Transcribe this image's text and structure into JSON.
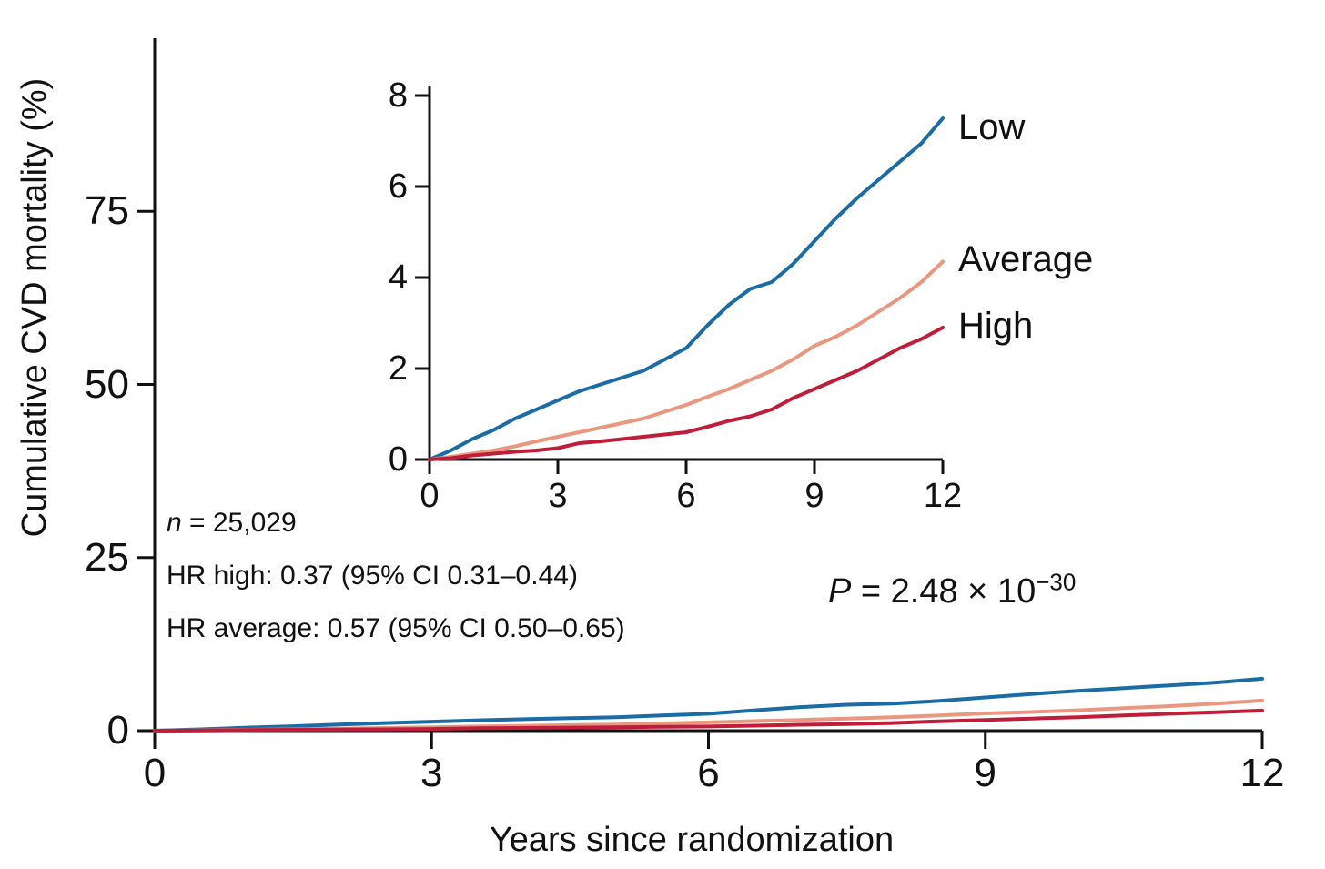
{
  "figure": {
    "y_axis_title": "Cumulative CVD mortality (%)",
    "x_axis_title": "Years since randomization"
  },
  "annotations": {
    "n_italic": "n",
    "n_rest": " = 25,029",
    "hr_high": "HR high: 0.37 (95% CI 0.31–0.44)",
    "hr_average": "HR average: 0.57 (95% CI 0.50–0.65)",
    "p_italic": "P",
    "p_rest": " = 2.48 × 10",
    "p_exponent": "−30"
  },
  "colors": {
    "low": "#1B6CA4",
    "average": "#EA977F",
    "high": "#BE1E3A",
    "axis": "#111111",
    "text": "#111111"
  },
  "chart_data": {
    "type": "line",
    "title": "",
    "xlabel": "Years since randomization",
    "ylabel": "Cumulative CVD mortality (%)",
    "x": [
      0,
      0.5,
      1,
      1.5,
      2,
      2.5,
      3,
      3.5,
      4,
      4.5,
      5,
      5.5,
      6,
      6.5,
      7,
      7.5,
      8,
      8.5,
      9,
      9.5,
      10,
      10.5,
      11,
      11.5,
      12
    ],
    "series": [
      {
        "name": "Low",
        "color": "#1B6CA4",
        "values": [
          0,
          0.2,
          0.45,
          0.65,
          0.9,
          1.1,
          1.3,
          1.5,
          1.65,
          1.8,
          1.95,
          2.2,
          2.45,
          2.95,
          3.4,
          3.75,
          3.9,
          4.3,
          4.8,
          5.3,
          5.75,
          6.15,
          6.55,
          6.95,
          7.5
        ]
      },
      {
        "name": "Average",
        "color": "#EA977F",
        "values": [
          0,
          0.06,
          0.13,
          0.2,
          0.29,
          0.4,
          0.5,
          0.6,
          0.7,
          0.8,
          0.9,
          1.05,
          1.2,
          1.38,
          1.55,
          1.75,
          1.95,
          2.2,
          2.5,
          2.7,
          2.95,
          3.25,
          3.55,
          3.9,
          4.35
        ]
      },
      {
        "name": "High",
        "color": "#BE1E3A",
        "values": [
          0,
          0.03,
          0.09,
          0.13,
          0.17,
          0.2,
          0.25,
          0.36,
          0.4,
          0.45,
          0.5,
          0.55,
          0.6,
          0.72,
          0.85,
          0.95,
          1.1,
          1.35,
          1.55,
          1.75,
          1.95,
          2.2,
          2.45,
          2.65,
          2.9
        ]
      }
    ],
    "main_view": {
      "xlim": [
        0,
        12
      ],
      "ylim": [
        0,
        100
      ],
      "xticks": [
        0,
        3,
        6,
        9,
        12
      ],
      "yticks": [
        0,
        25,
        50,
        75
      ],
      "grid": false,
      "legend": false
    },
    "inset_view": {
      "xlim": [
        0,
        12
      ],
      "ylim": [
        0,
        8
      ],
      "xticks": [
        0,
        3,
        6,
        9,
        12
      ],
      "yticks": [
        0,
        2,
        4,
        6,
        8
      ],
      "grid": false,
      "curve_end_labels": [
        "Low",
        "Average",
        "High"
      ]
    }
  }
}
